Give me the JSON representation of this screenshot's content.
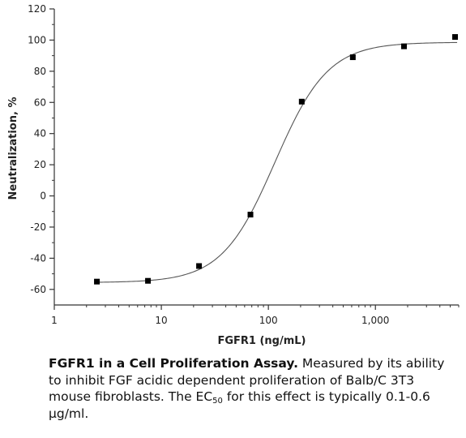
{
  "chart_data": {
    "type": "scatter",
    "xlabel": "FGFR1 (ng/mL)",
    "ylabel": "Neutralization, %",
    "xscale": "log",
    "xlim": [
      1,
      6000
    ],
    "ylim": [
      -70,
      120
    ],
    "x_ticks": [
      1,
      10,
      100,
      1000
    ],
    "x_tick_labels": [
      "1",
      "10",
      "100",
      "1,000"
    ],
    "y_ticks": [
      -60,
      -40,
      -20,
      0,
      20,
      40,
      60,
      80,
      100,
      120
    ],
    "y_tick_labels": [
      "-60",
      "-40",
      "-20",
      "0",
      "20",
      "40",
      "60",
      "80",
      "100",
      "120"
    ],
    "grid": false,
    "points": [
      {
        "x": 2.5,
        "y": -55
      },
      {
        "x": 7.5,
        "y": -54.5
      },
      {
        "x": 22.5,
        "y": -45
      },
      {
        "x": 68,
        "y": -12
      },
      {
        "x": 205,
        "y": 60.5
      },
      {
        "x": 615,
        "y": 89
      },
      {
        "x": 1850,
        "y": 96
      },
      {
        "x": 5550,
        "y": 102
      }
    ],
    "fit_curve": {
      "model": "4PL",
      "bottom": -55.6,
      "top": 98.6,
      "ec50": 115,
      "hill": 1.75
    }
  },
  "caption": {
    "title": "FGFR1 in a Cell Proliferation Assay.",
    "text_part1": " Measured by its ability to inhibit FGF acidic dependent proliferation of Balb/C 3T3 mouse fibroblasts. The EC",
    "subscript": "50",
    "text_part2": " for this effect is typically 0.1-0.6 µg/ml."
  }
}
